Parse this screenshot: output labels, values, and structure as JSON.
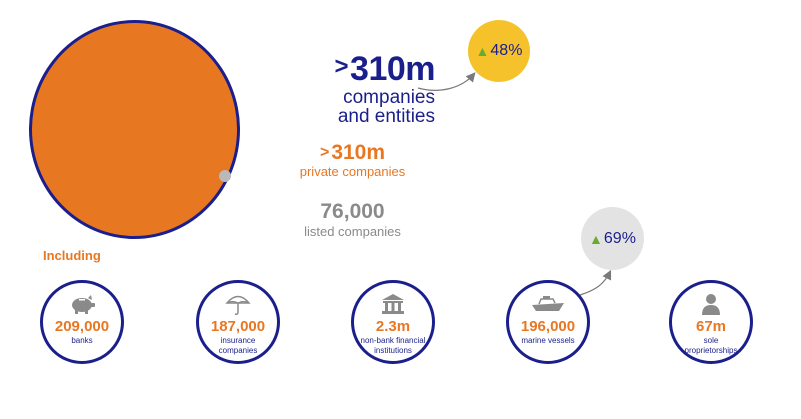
{
  "main": {
    "prefix": ">",
    "value": "310m",
    "label_line1": "companies",
    "label_line2": "and entities"
  },
  "private": {
    "prefix": ">",
    "value": "310m",
    "label": "private companies"
  },
  "listed": {
    "value": "76,000",
    "label": "listed companies"
  },
  "growth": {
    "companies": "48%",
    "marine": "69%"
  },
  "including_label": "Including",
  "categories": [
    {
      "value": "209,000",
      "label_line1": "banks",
      "label_line2": "",
      "icon": "piggy-bank-icon"
    },
    {
      "value": "187,000",
      "label_line1": "insurance",
      "label_line2": "companies",
      "icon": "umbrella-icon"
    },
    {
      "value": "2.3m",
      "label_line1": "non-bank financial",
      "label_line2": "institutions",
      "icon": "bank-building-icon"
    },
    {
      "value": "196,000",
      "label_line1": "marine vessels",
      "label_line2": "",
      "icon": "ship-icon"
    },
    {
      "value": "67m",
      "label_line1": "sole",
      "label_line2": "proprietorships",
      "icon": "person-icon"
    }
  ],
  "colors": {
    "navy": "#1a1f8c",
    "orange": "#e87722",
    "grey": "#8a8a8a",
    "yellow": "#f6c22c",
    "green": "#6aaa2e"
  }
}
